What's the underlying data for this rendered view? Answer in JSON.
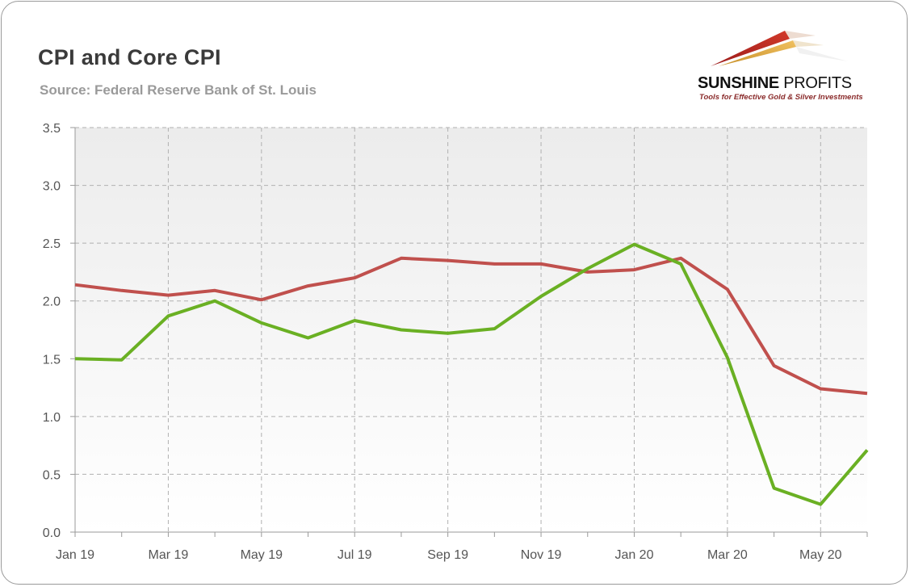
{
  "title": "CPI and Core CPI",
  "subtitle": "Source: Federal Reserve Bank of St. Louis",
  "logo": {
    "name_bold": "SUNSHINE",
    "name_regular": "PROFITS",
    "tagline": "Tools for Effective Gold & Silver Investments"
  },
  "chart_data": {
    "type": "line",
    "title": "CPI and Core CPI",
    "xlabel": "",
    "ylabel": "",
    "ylim": [
      0,
      3.5
    ],
    "grid": true,
    "legend": "none",
    "x": [
      "Jan 19",
      "Feb 19",
      "Mar 19",
      "Apr 19",
      "May 19",
      "Jun 19",
      "Jul 19",
      "Aug 19",
      "Sep 19",
      "Oct 19",
      "Nov 19",
      "Dec 19",
      "Jan 20",
      "Feb 20",
      "Mar 20",
      "Apr 20",
      "May 20",
      "Jun 20"
    ],
    "x_tick_labels": [
      "Jan 19",
      "Mar 19",
      "May 19",
      "Jul 19",
      "Sep 19",
      "Nov 19",
      "Jan 20",
      "Mar 20",
      "May 20"
    ],
    "y_ticks": [
      "0.0",
      "0.5",
      "1.0",
      "1.5",
      "2.0",
      "2.5",
      "3.0",
      "3.5"
    ],
    "series": [
      {
        "color": "#c0504d",
        "values": [
          2.14,
          2.09,
          2.05,
          2.09,
          2.01,
          2.13,
          2.2,
          2.37,
          2.35,
          2.32,
          2.32,
          2.25,
          2.27,
          2.37,
          2.1,
          1.44,
          1.24,
          1.2
        ]
      },
      {
        "color": "#6ab023",
        "values": [
          1.5,
          1.49,
          1.87,
          2.0,
          1.81,
          1.68,
          1.83,
          1.75,
          1.72,
          1.76,
          2.04,
          2.28,
          2.49,
          2.32,
          1.51,
          0.38,
          0.24,
          0.71
        ]
      }
    ]
  }
}
